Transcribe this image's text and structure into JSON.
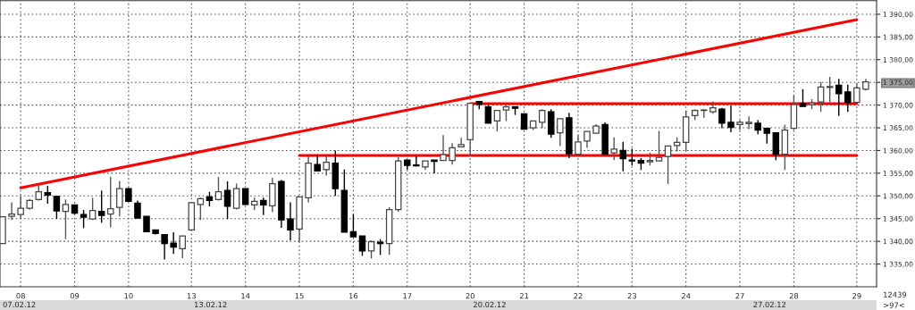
{
  "chart_data": {
    "type": "candlestick",
    "categories": [
      null,
      null,
      "08",
      null,
      null,
      null,
      null,
      null,
      "09",
      null,
      null,
      null,
      null,
      null,
      "10",
      null,
      null,
      null,
      null,
      null,
      null,
      "13",
      null,
      null,
      null,
      null,
      null,
      "14",
      null,
      null,
      null,
      null,
      null,
      "15",
      null,
      null,
      null,
      null,
      null,
      "16",
      null,
      null,
      null,
      null,
      null,
      "17",
      null,
      null,
      null,
      null,
      null,
      null,
      "20",
      null,
      null,
      null,
      null,
      null,
      "21",
      null,
      null,
      null,
      null,
      null,
      "22",
      null,
      null,
      null,
      null,
      null,
      "23",
      null,
      null,
      null,
      null,
      null,
      "24",
      null,
      null,
      null,
      null,
      null,
      "27",
      null,
      null,
      null,
      null,
      null,
      "28",
      null,
      null,
      null,
      null,
      null,
      null,
      "29",
      null
    ],
    "ohlc": [
      [
        1339.5,
        1345.4,
        1339.5,
        1345.4
      ],
      [
        1345.5,
        1348.6,
        1344.7,
        1346
      ],
      [
        1345.9,
        1349.9,
        1345.1,
        1347.3
      ],
      [
        1347.3,
        1349.3,
        1347,
        1349
      ],
      [
        1349.2,
        1352.2,
        1349,
        1350.9
      ],
      [
        1350.7,
        1352.2,
        1348.3,
        1350.2
      ],
      [
        1349.9,
        1349.9,
        1345,
        1346.7
      ],
      [
        1346.6,
        1349.2,
        1340.5,
        1348.1
      ],
      [
        1348,
        1348,
        1346,
        1346.2
      ],
      [
        1345.9,
        1346.9,
        1342.9,
        1345.3
      ],
      [
        1344.9,
        1349.6,
        1344.7,
        1346.8
      ],
      [
        1346.6,
        1351.2,
        1344.1,
        1345.7
      ],
      [
        1346,
        1354.2,
        1343.1,
        1347.2
      ],
      [
        1347.5,
        1353.3,
        1345.5,
        1351.6
      ],
      [
        1351.6,
        1351.8,
        1348.7,
        1348.8
      ],
      [
        1348.4,
        1349,
        1345.1,
        1345.1
      ],
      [
        1345.5,
        1345.5,
        1342,
        1342.1
      ],
      [
        1342.5,
        1342.5,
        1341.5,
        1341.7
      ],
      [
        1341.5,
        1341.5,
        1336,
        1339.5
      ],
      [
        1339.6,
        1342,
        1337.2,
        1338.7
      ],
      [
        1338.4,
        1341.2,
        1336.3,
        1341.2
      ],
      [
        1342.5,
        1348.5,
        1342.5,
        1348.5
      ],
      [
        1348.1,
        1349.6,
        1344.7,
        1349.4
      ],
      [
        1349.8,
        1350.9,
        1347.7,
        1349
      ],
      [
        1349.2,
        1354.2,
        1349,
        1350.9
      ],
      [
        1351.2,
        1353.2,
        1344.9,
        1347.7
      ],
      [
        1347.3,
        1352.7,
        1347,
        1351.6
      ],
      [
        1351.6,
        1351.6,
        1348,
        1348.1
      ],
      [
        1348,
        1349.6,
        1346.9,
        1348.8
      ],
      [
        1349,
        1349.6,
        1345.8,
        1348
      ],
      [
        1347.8,
        1354,
        1346.4,
        1352.7
      ],
      [
        1353.2,
        1353.5,
        1343,
        1344.7
      ],
      [
        1344.9,
        1348.6,
        1340.2,
        1342.5
      ],
      [
        1342.7,
        1349.8,
        1339.9,
        1349.8
      ],
      [
        1349.6,
        1358.7,
        1348.6,
        1357.2
      ],
      [
        1356.9,
        1359.1,
        1355.5,
        1355.5
      ],
      [
        1355.8,
        1359,
        1354.5,
        1357.4
      ],
      [
        1357.2,
        1360,
        1350,
        1351.6
      ],
      [
        1351.2,
        1355.8,
        1342,
        1342
      ],
      [
        1342.1,
        1346,
        1341,
        1341
      ],
      [
        1341.2,
        1341.2,
        1336.8,
        1337.9
      ],
      [
        1337.9,
        1340.2,
        1336.2,
        1339.9
      ],
      [
        1339.8,
        1340.5,
        1337,
        1339.5
      ],
      [
        1339.5,
        1347.5,
        1337,
        1347
      ],
      [
        1347,
        1358.5,
        1346.5,
        1357.7
      ],
      [
        1357.9,
        1357.9,
        1355.7,
        1356.7
      ],
      [
        1356.8,
        1358.7,
        1356.5,
        1356.6
      ],
      [
        1356.4,
        1357.7,
        1355.7,
        1357.7
      ],
      [
        1357.9,
        1357.9,
        1355,
        1357.6
      ],
      [
        1357.8,
        1363.4,
        1357.8,
        1359.1
      ],
      [
        1357.8,
        1361.6,
        1356.9,
        1360.6
      ],
      [
        1360.8,
        1362.8,
        1360.8,
        1361.3
      ],
      [
        1362.4,
        1370.4,
        1358.7,
        1370.4
      ],
      [
        1370.8,
        1370.8,
        1369.1,
        1370.2
      ],
      [
        1369.6,
        1370,
        1366,
        1366
      ],
      [
        1366.5,
        1368.8,
        1364.2,
        1368.8
      ],
      [
        1368.9,
        1370,
        1366.5,
        1369.6
      ],
      [
        1369.6,
        1369.8,
        1367.8,
        1369.3
      ],
      [
        1368.1,
        1368.1,
        1364.7,
        1364.7
      ],
      [
        1365,
        1366.5,
        1364.5,
        1366.5
      ],
      [
        1366.2,
        1369.1,
        1364.9,
        1368.8
      ],
      [
        1368.5,
        1369.1,
        1362.8,
        1363.6
      ],
      [
        1363.9,
        1367,
        1361,
        1367
      ],
      [
        1367.2,
        1368.3,
        1358.3,
        1359.3
      ],
      [
        1359.2,
        1363.4,
        1359.2,
        1361.9
      ],
      [
        1362.1,
        1364.2,
        1360.6,
        1364.2
      ],
      [
        1363.8,
        1365.8,
        1363.8,
        1365.4
      ],
      [
        1365.7,
        1366.2,
        1359.2,
        1359.2
      ],
      [
        1359.5,
        1362.9,
        1357.9,
        1360.3
      ],
      [
        1360,
        1361.9,
        1355.4,
        1358.2
      ],
      [
        1357.9,
        1360.4,
        1356.7,
        1357.7
      ],
      [
        1357.8,
        1358.3,
        1355.7,
        1357.2
      ],
      [
        1357.5,
        1359.5,
        1356.7,
        1357.8
      ],
      [
        1357.7,
        1364.3,
        1357.7,
        1358.5
      ],
      [
        1358.7,
        1361,
        1352.6,
        1361
      ],
      [
        1361.1,
        1362.9,
        1359.8,
        1361.8
      ],
      [
        1361.8,
        1368.8,
        1359.9,
        1367.4
      ],
      [
        1367.7,
        1369.1,
        1366.7,
        1368.8
      ],
      [
        1368.8,
        1369.1,
        1367.2,
        1368.9
      ],
      [
        1368.5,
        1370.8,
        1368.1,
        1369.4
      ],
      [
        1369.1,
        1369.4,
        1364.9,
        1366
      ],
      [
        1366.2,
        1369.9,
        1364,
        1365.1
      ],
      [
        1365.7,
        1366.7,
        1364.5,
        1366.2
      ],
      [
        1365.9,
        1367.5,
        1364.7,
        1366.2
      ],
      [
        1366,
        1366.7,
        1363.6,
        1364.5
      ],
      [
        1364.9,
        1364.9,
        1361.5,
        1363.8
      ],
      [
        1363.9,
        1363.9,
        1357.9,
        1359.2
      ],
      [
        1359.2,
        1365.7,
        1355.7,
        1364.5
      ],
      [
        1364.9,
        1372.2,
        1364.5,
        1370.1
      ],
      [
        1370.4,
        1373.5,
        1369.7,
        1369.7
      ],
      [
        1370.1,
        1371.3,
        1369.1,
        1370.5
      ],
      [
        1370.7,
        1375.1,
        1368.5,
        1374
      ],
      [
        1373.9,
        1376.2,
        1370.6,
        1374.1
      ],
      [
        1374.4,
        1375.8,
        1367.6,
        1372.5
      ],
      [
        1372.9,
        1374.5,
        1368.5,
        1370.6
      ],
      [
        1370.6,
        1374.8,
        1370.6,
        1373.8
      ],
      [
        1373.5,
        1375.8,
        1373.2,
        1375.1
      ]
    ],
    "series": [
      {
        "type": "line",
        "color": "#ff0000",
        "x": [
          "08",
          "29"
        ],
        "values": [
          1351.8,
          1388.8
        ]
      },
      {
        "type": "line",
        "color": "#ff0000",
        "x": [
          "15",
          "29"
        ],
        "values": [
          1358.9,
          1358.9
        ]
      },
      {
        "type": "line",
        "color": "#ff0000",
        "x": [
          "20",
          "29"
        ],
        "values": [
          1370.3,
          1370.3
        ]
      }
    ],
    "ylim": [
      1330,
      1393
    ],
    "yticks": [
      {
        "value": 1335,
        "label": "1 335,00"
      },
      {
        "value": 1340,
        "label": "1 340,00"
      },
      {
        "value": 1345,
        "label": "1 345,00"
      },
      {
        "value": 1350,
        "label": "1 350,00"
      },
      {
        "value": 1355,
        "label": "1 355,00"
      },
      {
        "value": 1360,
        "label": "1 360,00"
      },
      {
        "value": 1365,
        "label": "1 365,00"
      },
      {
        "value": 1370,
        "label": "1 370,00"
      },
      {
        "value": 1375,
        "label": "1 375,00"
      },
      {
        "value": 1380,
        "label": "1 380,00"
      },
      {
        "value": 1385,
        "label": "1 385,00"
      },
      {
        "value": 1390,
        "label": "1 390,00"
      }
    ],
    "grid": true,
    "line_style": "solid",
    "annotations": [
      "07.02.12",
      "13.02.12",
      "20.02.12",
      "27.02.12",
      "12439",
      ">97<"
    ]
  }
}
